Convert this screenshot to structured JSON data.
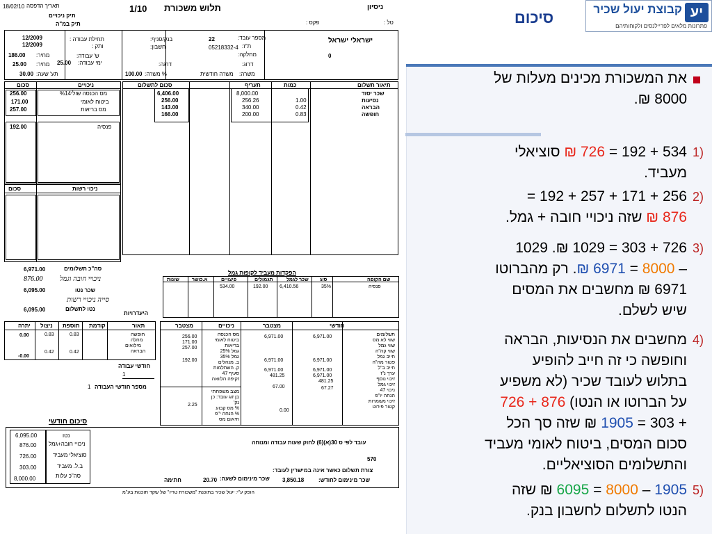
{
  "title": "סיכום",
  "logo": {
    "text": "קבוצת יעול שכיר",
    "sub": "פתרונות מלאים לפריילנסים ולקוחותיהם"
  },
  "points": [
    {
      "lines": [
        [
          {
            "t": "את המשכורת מכינים מעלות של"
          }
        ],
        [
          {
            "t": "8000 ₪."
          }
        ]
      ]
    }
  ],
  "items": [
    {
      "n": "1)",
      "lines": [
        [
          {
            "t": "534 + 192 = "
          },
          {
            "t": "726 ₪",
            "c": "red"
          },
          {
            "t": " סוציאלי"
          }
        ],
        [
          {
            "t": "מעביד."
          }
        ]
      ]
    },
    {
      "n": "2)",
      "lines": [
        [
          {
            "t": "256 + 171 + 257 + 192 ="
          }
        ],
        [
          {
            "t": "876 ₪",
            "c": "red"
          },
          {
            "t": " שזה ניכויי חובה + גמל."
          }
        ]
      ]
    },
    {
      "n": "3)",
      "lines": [
        [
          {
            "t": "726 + 303 = 1029 ₪.  1029"
          }
        ],
        [
          {
            "t": "– "
          },
          {
            "t": "8000",
            "c": "orange"
          },
          {
            "t": " = "
          },
          {
            "t": "6971 ₪",
            "c": "blue"
          },
          {
            "t": ". רק מהברוטו"
          }
        ],
        [
          {
            "t": "6971 ₪ מחשבים את  המסים"
          }
        ],
        [
          {
            "t": "שיש לשלם."
          }
        ]
      ]
    },
    {
      "n": "4)",
      "lines": [
        [
          {
            "t": "מחשבים את הנסיעות, הבראה"
          }
        ],
        [
          {
            "t": "וחופשה כי זה חייב להופיע"
          }
        ],
        [
          {
            "t": "בתלוש לעובד שכיר (לא משפיע"
          }
        ],
        [
          {
            "t": "על הברוטו או הנטו)  "
          },
          {
            "t": "876 + 726",
            "c": "red"
          }
        ],
        [
          {
            "t": "+ 303 = "
          },
          {
            "t": "1905",
            "c": "blue"
          },
          {
            "t": " ₪ שזה סך הכל"
          }
        ],
        [
          {
            "t": "סכום המסים, ביטוח לאומי מעביד"
          }
        ],
        [
          {
            "t": "והתשלומים הסוציאליים."
          }
        ]
      ]
    },
    {
      "n": "5)",
      "lines": [
        [
          {
            "t": "1905",
            "c": "blue"
          },
          {
            "t": " – "
          },
          {
            "t": "8000",
            "c": "orange"
          },
          {
            "t": " = "
          },
          {
            "t": "6095",
            "c": "green"
          },
          {
            "t": " ₪ שזה"
          }
        ],
        [
          {
            "t": "הנטו לתשלום לחשבון בנק."
          }
        ]
      ]
    }
  ],
  "slip": {
    "date_label": "תאריך הדפסה",
    "date": "18/02/10",
    "file_label1": "תיק ניכויים",
    "file_label2": "תיק במ\"ה",
    "page": "1/10",
    "doc_title": "תלוש משכורת",
    "company": "ניסיון",
    "phone_label": "טל :",
    "fax_label": "פקס :",
    "employer_labels": [
      "מספר עובד:",
      "ת\"ז:",
      "מחלקה:",
      "דרוג:",
      "משרה:"
    ],
    "employee_no": "22",
    "id_no": "05218332-4",
    "job_type": "משרה חודשית",
    "employee_name": "ישראלי ישראל",
    "zero": "0",
    "bank_label": "בנק/סניף:",
    "account_label": "חשבון:",
    "rank_label": "דרגה:",
    "pct_label": "% משרה:",
    "pct_value": "100.00",
    "start_label": "תחילת עבודה :",
    "start_value": "12/2009",
    "vetek_label": "ותק :",
    "vetek_value": "12/2009",
    "hours_label": "ש' עבודה:",
    "days_label": "ימי עבודה:",
    "days_value": "25.00",
    "mehir_label": "מחיר:",
    "mehir1": "186.00",
    "mehir2": "25.00",
    "rate_label": "תע' שעה:",
    "rate_value": "30.00",
    "pay_headers": [
      "תיאור תשלום",
      "כמות",
      "תעריף",
      "סכום לתשלום"
    ],
    "pay_rows": [
      {
        "desc": "שכר יסוד",
        "qty": "",
        "rate": "8,000.00",
        "sum": "6,406.00"
      },
      {
        "desc": "נסיעות",
        "qty": "1.00",
        "rate": "256.26",
        "sum": "256.00"
      },
      {
        "desc": "הבראה",
        "qty": "0.42",
        "rate": "340.00",
        "sum": "143.00"
      },
      {
        "desc": "חופשה",
        "qty": "0.83",
        "rate": "200.00",
        "sum": "166.00"
      }
    ],
    "ded_headers": [
      "ניכויים",
      "סכום"
    ],
    "ded_rows": [
      {
        "desc": "מס הכנסה שולי%14",
        "sum": "256.00"
      },
      {
        "desc": "ביטוח לאומי",
        "sum": "171.00"
      },
      {
        "desc": "מס בריאות",
        "sum": "257.00"
      }
    ],
    "pension": {
      "desc": "פנסיה",
      "sum": "192.00"
    },
    "resh_headers": [
      "ניכוי רשות",
      "סכום"
    ],
    "totals": [
      {
        "label": "סה\"כ תשלומים",
        "value": "6,971.00"
      },
      {
        "label": "ניכויי חובה וגמל",
        "value": "876.00"
      },
      {
        "label": "שכר נטו",
        "value": "6,095.00"
      },
      {
        "label": "סייה ניכויי רשות",
        "value": ""
      },
      {
        "label": "נטו לתשלום",
        "value": "6,095.00"
      }
    ],
    "absence_label": "היעדרויות",
    "gemel_title": "הפקדות מעביד לקופות גמל",
    "gemel_headers": [
      "שם הקופה",
      "סוג",
      "שכר לגמל",
      "תגמולים",
      "פיצויים",
      "א.כושר",
      "שונות"
    ],
    "gemel_row": {
      "name": "פנסיה",
      "type": "35%",
      "salary": "6,410.56",
      "tag": "192.00",
      "piz": "534.00"
    },
    "vac_headers": [
      "תאור",
      "קודמת",
      "תוספת",
      "ניצול",
      "יתרה"
    ],
    "vac_rows": [
      {
        "desc": "חופשה",
        "prev": "0.83",
        "add": "0.83",
        "used": "",
        "bal": "0.00"
      },
      {
        "desc": "מחלה",
        "prev": "",
        "add": "",
        "used": "",
        "bal": ""
      },
      {
        "desc": "מילואים",
        "prev": "",
        "add": "",
        "used": "",
        "bal": ""
      },
      {
        "desc": "הבראה",
        "prev": "0.42",
        "add": "0.42",
        "used": "",
        "bal": "-0.00"
      }
    ],
    "months_label": "חודשי עבודה",
    "months_value": "1",
    "months_count_label": "מספר חודשי העבודה",
    "months_count_value": "1",
    "tax_headers": [
      "חודשי",
      "מצטבר",
      "ניכויים",
      "מצטבר"
    ],
    "tax_labels": [
      "תשלומים",
      "שווי לא מס",
      "שווי גמל",
      "שווי קה\"ה",
      "חייב גמל",
      "פטור מה\"ה",
      "חייב ב\"ל",
      "ערך נ\"ז",
      "זיכוי נוסף",
      "זיכוי גמל",
      "ניכוי 47",
      "הנחה יו\"פ",
      "זיכוי משמרות",
      "קטור פירוט"
    ],
    "tax_monthly": [
      "6,971.00",
      "6,971.00",
      "6,971.00",
      "6,971.00",
      "481.25",
      "67.27"
    ],
    "tax_cum": [
      "6,971.00",
      "6,971.00",
      "6,971.00",
      "481.25",
      "67.00",
      "0.00"
    ],
    "tax_ded_labels": [
      "מס הכנסה",
      "ביטוח לאומי",
      "בריאות",
      "גמל 25%",
      "גמל 35%",
      "ב. מנהלים",
      "ק. השתלמות",
      "סעיף 47",
      "זקיפה הלוואה"
    ],
    "tax_ded_values": [
      "256.00",
      "171.00",
      "257.00",
      "192.00"
    ],
    "tax_misc_labels": [
      "מצב משפחתי",
      "בן זוג עובד: כן",
      "נק'",
      "% מס קבוע",
      "% הנחה י\"פ",
      "תיאום מס"
    ],
    "tax_misc_values": [
      "2.25"
    ],
    "summary_title": "סיכום חודשי",
    "summary_rows": [
      {
        "value": "6,095.00",
        "label": "נטו"
      },
      {
        "value": "876.00",
        "label": "ניכויי חובה+גמל"
      },
      {
        "value": "726.00",
        "label": "סוציאלי מעביד"
      },
      {
        "value": "303.00",
        "label": "ב.ל. מעביד"
      },
      {
        "value": "8,000.00",
        "label": "סה\"כ עלות"
      }
    ],
    "law_text": "עובד לפי ס 30(א)(6) לחוק שעות עבודה ומנוחה",
    "law_num": "570",
    "cash_label": "צורת תשלום כאשר אינה במישרין לעובד:",
    "min_month_label": "שכר מינימום לחודש:",
    "min_month_value": "3,850.18",
    "min_hour_label": "שכר מינימום לשעה:",
    "min_hour_value": "20.70",
    "signature_label": "חתימה",
    "footer": "הופק ע\"י: יעול שכיר בתוכנת \"משכורת טריו\" של שקד תוכנות בע\"מ"
  }
}
